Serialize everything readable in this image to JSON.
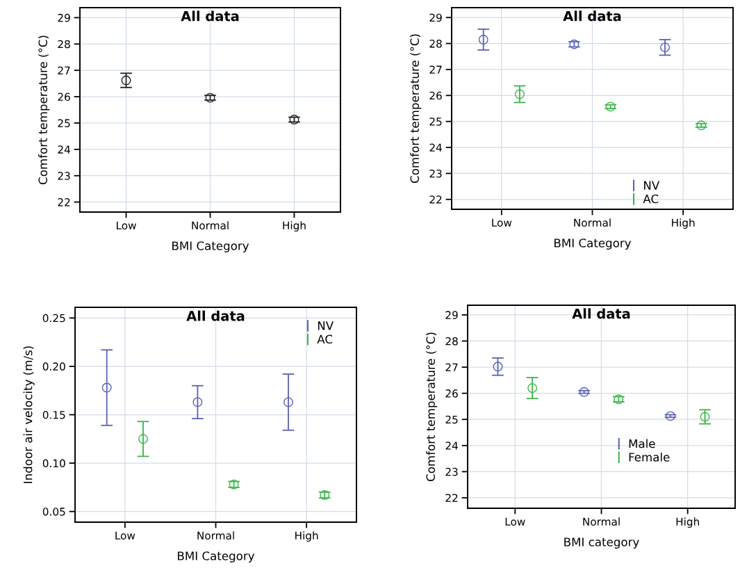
{
  "chart_data": [
    {
      "type": "scatter",
      "title": "All data",
      "xlabel": "BMI Category",
      "ylabel": "Comfort temperature (°C)",
      "categories": [
        "Low",
        "Normal",
        "High"
      ],
      "ylim": [
        21.62,
        29.38
      ],
      "yticks": [
        22,
        23,
        24,
        25,
        26,
        27,
        28,
        29
      ],
      "grid": true,
      "marker": "circle",
      "legend": false,
      "series": [
        {
          "color": "#222222",
          "values": [
            26.62,
            25.96,
            25.13
          ],
          "errors": [
            0.27,
            0.09,
            0.09
          ]
        }
      ]
    },
    {
      "type": "scatter",
      "title": "All data",
      "xlabel": "BMI Category",
      "ylabel": "Comfort temperature (°C)",
      "categories": [
        "Low",
        "Normal",
        "High"
      ],
      "ylim": [
        21.62,
        29.38
      ],
      "yticks": [
        22,
        23,
        24,
        25,
        26,
        27,
        28,
        29
      ],
      "grid": true,
      "marker": "circle",
      "legend": "center right",
      "series": [
        {
          "name": "NV",
          "color": "#5a62b4",
          "values": [
            28.15,
            27.97,
            27.85
          ],
          "errors": [
            0.4,
            0.1,
            0.3
          ]
        },
        {
          "name": "AC",
          "color": "#3cb44a",
          "values": [
            26.05,
            25.57,
            24.85
          ],
          "errors": [
            0.32,
            0.07,
            0.07
          ]
        }
      ]
    },
    {
      "type": "scatter",
      "title": "All data",
      "xlabel": "BMI Category",
      "ylabel": "Indoor air velocity (m/s)",
      "categories": [
        "Low",
        "Normal",
        "High"
      ],
      "ylim": [
        0.039,
        0.261
      ],
      "yticks": [
        {
          "value": 0.05,
          "label": "0.05"
        },
        {
          "value": 0.1,
          "label": "0.10"
        },
        {
          "value": 0.15,
          "label": "0.15"
        },
        {
          "value": 0.2,
          "label": "0.20"
        },
        {
          "value": 0.25,
          "label": "0.25"
        }
      ],
      "grid": true,
      "marker": "circle",
      "legend": "top right",
      "series": [
        {
          "name": "NV",
          "color": "#5a62b4",
          "values": [
            0.178,
            0.163,
            0.163
          ],
          "errors": [
            0.039,
            0.017,
            0.029
          ]
        },
        {
          "name": "AC",
          "color": "#3cb44a",
          "values": [
            0.125,
            0.078,
            0.067
          ],
          "errors": [
            0.018,
            0.003,
            0.003
          ]
        }
      ]
    },
    {
      "type": "scatter",
      "title": "All data",
      "xlabel": "BMI category",
      "ylabel": "Comfort temperature (°C)",
      "categories": [
        "Low",
        "Normal",
        "High"
      ],
      "ylim": [
        21.6,
        29.37
      ],
      "yticks": [
        22,
        23,
        24,
        25,
        26,
        27,
        28,
        29
      ],
      "grid": true,
      "marker": "circle",
      "legend": "center right",
      "series": [
        {
          "name": "Male",
          "color": "#5a62b4",
          "values": [
            27.02,
            26.05,
            25.13
          ],
          "errors": [
            0.33,
            0.05,
            0.05
          ]
        },
        {
          "name": "Female",
          "color": "#3cb44a",
          "values": [
            26.2,
            25.77,
            25.1
          ],
          "errors": [
            0.4,
            0.1,
            0.27
          ]
        }
      ]
    }
  ]
}
